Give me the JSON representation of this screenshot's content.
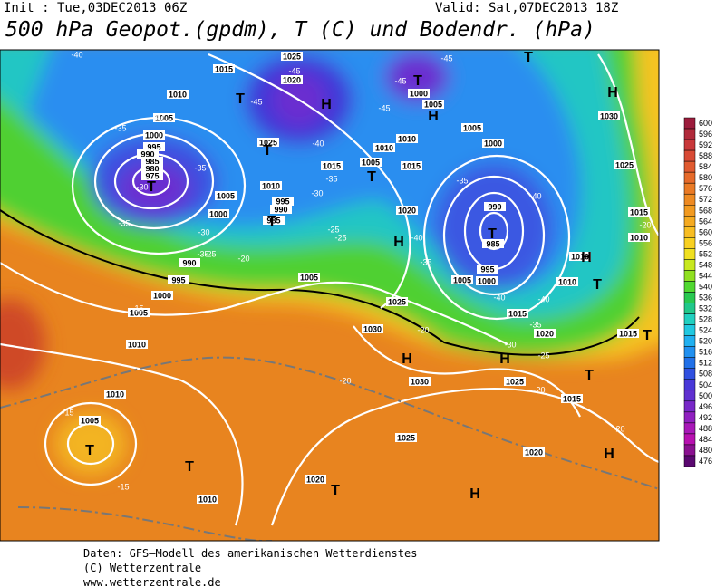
{
  "header": {
    "init": "Init : Tue,03DEC2013 06Z",
    "valid": "Valid: Sat,07DEC2013 18Z",
    "title": "500 hPa Geopot.(gpdm), T (C) und Bodendr. (hPa)"
  },
  "legend": {
    "values": [
      600,
      596,
      592,
      588,
      584,
      580,
      576,
      572,
      568,
      564,
      560,
      556,
      552,
      548,
      544,
      540,
      536,
      532,
      528,
      524,
      520,
      516,
      512,
      508,
      504,
      500,
      496,
      492,
      488,
      484,
      480,
      476
    ],
    "colors": [
      "#9c1c3c",
      "#b02a3a",
      "#c8383a",
      "#d84a35",
      "#e05a30",
      "#e66a2a",
      "#ea7a25",
      "#ee8a22",
      "#f29a20",
      "#f5aa20",
      "#f8bd22",
      "#f8d020",
      "#f0e020",
      "#c8e81e",
      "#90e020",
      "#50d830",
      "#28c850",
      "#20c88a",
      "#20d0c0",
      "#20c8e0",
      "#20b0f0",
      "#2090f0",
      "#2070e8",
      "#3050e0",
      "#4838d8",
      "#6030d0",
      "#7828c8",
      "#9020c0",
      "#a818b8",
      "#b810b0",
      "#8a1090",
      "#5a0870"
    ]
  },
  "map": {
    "pressure_labels": [
      "1015",
      "1025",
      "1020",
      "1010",
      "1005",
      "1000",
      "995",
      "990",
      "985",
      "980",
      "975",
      "1025",
      "1010",
      "1005",
      "1000",
      "995",
      "990",
      "985",
      "1015",
      "1005",
      "1015",
      "1010",
      "1010",
      "1005",
      "1000",
      "1005",
      "1000",
      "990",
      "985",
      "995",
      "1000",
      "1005",
      "1020",
      "1030",
      "1025",
      "1015",
      "1010",
      "1010",
      "1010",
      "1015",
      "1020",
      "1015",
      "1015",
      "1020",
      "1025",
      "1025",
      "1030",
      "1030",
      "1025",
      "1005",
      "1000",
      "995",
      "990",
      "1005",
      "1010",
      "1010",
      "1005",
      "1010",
      "1020"
    ],
    "temperature_labels": [
      "-40",
      "-45",
      "-45",
      "-45",
      "-45",
      "-40",
      "-35",
      "-30",
      "-45",
      "-40",
      "-35",
      "-35",
      "-30",
      "-35",
      "-30",
      "-25",
      "-20",
      "-35",
      "-25",
      "-25",
      "-40",
      "-35",
      "-35",
      "-40",
      "-40",
      "-40",
      "-35",
      "-30",
      "-25",
      "-20",
      "-20",
      "-20",
      "-20",
      "-20",
      "-15",
      "-15",
      "-15"
    ],
    "centers": [
      "T",
      "T",
      "H",
      "T",
      "T",
      "T",
      "H",
      "T",
      "H",
      "T",
      "H",
      "T",
      "H",
      "T",
      "H",
      "H",
      "T",
      "T",
      "T",
      "T",
      "T",
      "H",
      "H"
    ]
  },
  "footer": {
    "lines": [
      "Daten: GFS–Modell des amerikanischen Wetterdienstes",
      "(C) Wetterzentrale",
      "www.wetterzentrale.de"
    ]
  }
}
